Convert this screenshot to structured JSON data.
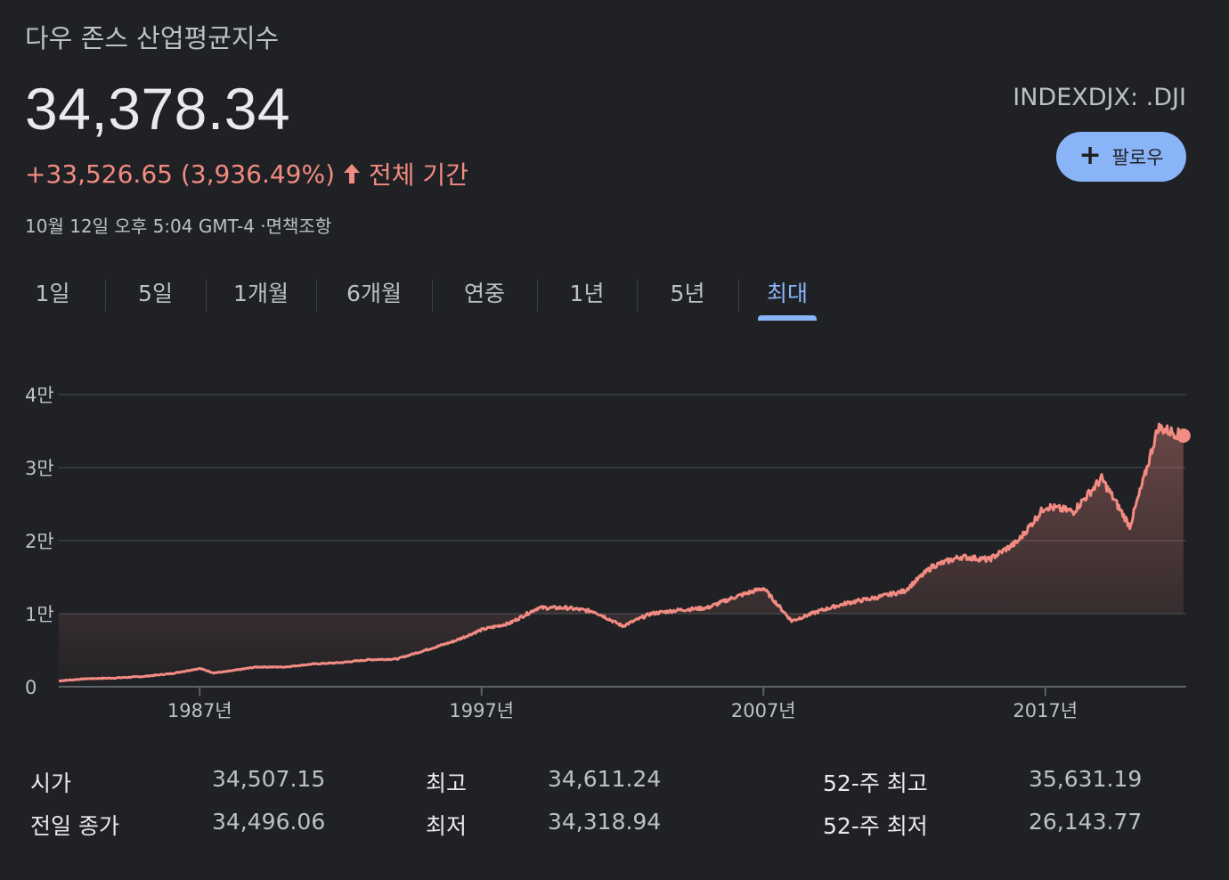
{
  "header": {
    "title": "다우 존스 산업평균지수",
    "price": "34,378.34",
    "change_text": "+33,526.65 (3,936.49%)",
    "period_text": "전체 기간",
    "timestamp": "10월 12일 오후 5:04 GMT-4 ·면책조항",
    "ticker": "INDEXDJX: .DJI",
    "follow_label": "팔로우",
    "accent_color": "#8ab4f8",
    "change_color": "#f28b82"
  },
  "tabs": [
    {
      "label": "1일"
    },
    {
      "label": "5일"
    },
    {
      "label": "1개월"
    },
    {
      "label": "6개월"
    },
    {
      "label": "연중"
    },
    {
      "label": "1년"
    },
    {
      "label": "5년"
    },
    {
      "label": "최대",
      "active": true
    }
  ],
  "chart_data": {
    "type": "area",
    "x": [
      1982,
      1983,
      1984,
      1985,
      1986,
      1987,
      1987.5,
      1988,
      1989,
      1990,
      1991,
      1992,
      1993,
      1994,
      1995,
      1996,
      1997,
      1998,
      1999,
      2000,
      2001,
      2002,
      2003,
      2004,
      2005,
      2006,
      2007,
      2008,
      2009,
      2010,
      2011,
      2012,
      2013,
      2014,
      2015,
      2016,
      2017,
      2018,
      2019,
      2020,
      2020.5,
      2021,
      2021.9
    ],
    "values": [
      800,
      1100,
      1200,
      1400,
      1800,
      2500,
      1900,
      2100,
      2700,
      2700,
      3100,
      3300,
      3700,
      3800,
      5000,
      6200,
      7800,
      8700,
      10800,
      10800,
      10300,
      8300,
      10000,
      10500,
      10800,
      12300,
      13500,
      9000,
      10400,
      11500,
      12200,
      13100,
      16500,
      17800,
      17400,
      19800,
      24700,
      24000,
      28500,
      22000,
      28500,
      35500,
      34378.34
    ],
    "xticks": [
      1987,
      1997,
      2007,
      2017
    ],
    "xtick_labels": [
      "1987년",
      "1997년",
      "2007년",
      "2017년"
    ],
    "yticks": [
      0,
      10000,
      20000,
      30000,
      40000
    ],
    "ytick_labels": [
      "0",
      "1만",
      "2만",
      "3만",
      "4만"
    ],
    "ylim": [
      0,
      40000
    ],
    "xlim": [
      1982,
      2022
    ],
    "line_color": "#f28b82",
    "grid": true
  },
  "stats": [
    {
      "label": "시가",
      "value": "34,507.15"
    },
    {
      "label": "전일 종가",
      "value": "34,496.06"
    },
    {
      "label": "최고",
      "value": "34,611.24"
    },
    {
      "label": "최저",
      "value": "34,318.94"
    },
    {
      "label": "52-주 최고",
      "value": "35,631.19"
    },
    {
      "label": "52-주 최저",
      "value": "26,143.77"
    }
  ]
}
